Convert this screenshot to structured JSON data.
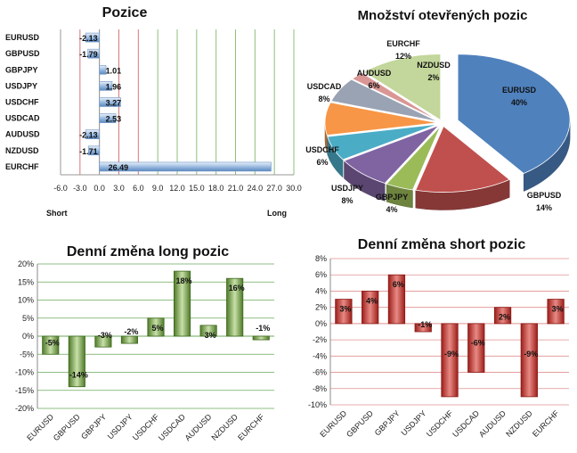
{
  "chart_data": [
    {
      "type": "bar",
      "orientation": "horizontal",
      "title": "Pozice",
      "categories": [
        "EURUSD",
        "GBPUSD",
        "GBPJPY",
        "USDJPY",
        "USDCHF",
        "USDCAD",
        "AUDUSD",
        "NZDUSD",
        "EURCHF"
      ],
      "values": [
        -2.13,
        -1.79,
        1.01,
        1.96,
        3.27,
        2.53,
        -2.13,
        -1.71,
        26.49
      ],
      "value_labels": [
        "-2.13",
        "-1.79",
        "1.01",
        "1.96",
        "3.27",
        "2.53",
        "-2.13",
        "-1.71",
        "26.49"
      ],
      "xlim": [
        -6,
        30
      ],
      "xticks": [
        -6,
        -3,
        0,
        3,
        6,
        9,
        12,
        15,
        18,
        21,
        24,
        27,
        30
      ],
      "xtick_labels": [
        "-6.0",
        "-3.0",
        "0.0",
        "3.0",
        "6.0",
        "9.0",
        "12.0",
        "15.0",
        "18.0",
        "21.0",
        "24.0",
        "27.0",
        "30.0"
      ],
      "short_label": "Short",
      "long_label": "Long",
      "colors": {
        "red_lines": "#d87878",
        "green_lines": "#8cc07a",
        "bar": "#8fb4dc"
      }
    },
    {
      "type": "pie",
      "title": "Množství otevřených pozic",
      "slices": [
        {
          "name": "EURUSD",
          "value": 40,
          "label": "40%",
          "color": "#4f81bd"
        },
        {
          "name": "GBPUSD",
          "value": 14,
          "label": "14%",
          "color": "#c0504d"
        },
        {
          "name": "GBPJPY",
          "value": 4,
          "label": "4%",
          "color": "#9bbb59"
        },
        {
          "name": "USDJPY",
          "value": 8,
          "label": "8%",
          "color": "#8064a2"
        },
        {
          "name": "USDCHF",
          "value": 6,
          "label": "6%",
          "color": "#4bacc6"
        },
        {
          "name": "USDCAD",
          "value": 8,
          "label": "8%",
          "color": "#f79646"
        },
        {
          "name": "AUDUSD",
          "value": 6,
          "label": "6%",
          "color": "#9aa3b4"
        },
        {
          "name": "NZDUSD",
          "value": 2,
          "label": "2%",
          "color": "#d99694"
        },
        {
          "name": "EURCHF",
          "value": 12,
          "label": "12%",
          "color": "#c3d69b"
        }
      ]
    },
    {
      "type": "bar",
      "title": "Denní změna long pozic",
      "categories": [
        "EURUSD",
        "GBPUSD",
        "GBPJPY",
        "USDJPY",
        "USDCHF",
        "USDCAD",
        "AUDUSD",
        "NZDUSD",
        "EURCHF"
      ],
      "values": [
        -5,
        -14,
        -3,
        -2,
        5,
        18,
        3,
        16,
        -1
      ],
      "value_labels": [
        "-5%",
        "-14%",
        "-3%",
        "-2%",
        "5%",
        "18%",
        "3%",
        "16%",
        "-1%"
      ],
      "ylim": [
        -20,
        20
      ],
      "yticks": [
        20,
        15,
        10,
        5,
        0,
        -5,
        -10,
        -15,
        -20
      ],
      "ytick_labels": [
        "20%",
        "15%",
        "10%",
        "5%",
        "0%",
        "-5%",
        "-10%",
        "-15%",
        "-20%"
      ],
      "grid": true,
      "colors": {
        "bar": "#7aa450",
        "grid": "#6aaa5a"
      }
    },
    {
      "type": "bar",
      "title": "Denní změna short pozic",
      "categories": [
        "EURUSD",
        "GBPUSD",
        "GBPJPY",
        "USDJPY",
        "USDCHF",
        "USDCAD",
        "AUDUSD",
        "NZDUSD",
        "EURCHF"
      ],
      "values": [
        3,
        4,
        6,
        -1,
        -9,
        -6,
        2,
        -9,
        3
      ],
      "value_labels": [
        "3%",
        "4%",
        "6%",
        "-1%",
        "-9%",
        "-6%",
        "2%",
        "-9%",
        "3%"
      ],
      "ylim": [
        -10,
        8
      ],
      "yticks": [
        8,
        6,
        4,
        2,
        0,
        -2,
        -4,
        -6,
        -8,
        -10
      ],
      "ytick_labels": [
        "8%",
        "6%",
        "4%",
        "2%",
        "0%",
        "-2%",
        "-4%",
        "-6%",
        "-8%",
        "-10%"
      ],
      "grid": true,
      "colors": {
        "bar": "#c0302c",
        "grid": "#e09090"
      }
    }
  ]
}
